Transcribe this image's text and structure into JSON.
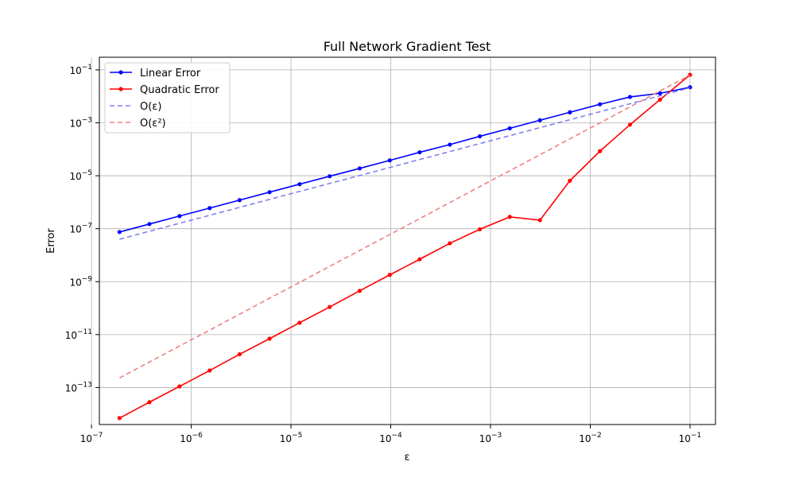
{
  "chart_data": {
    "type": "line",
    "title": "Full Network Gradient Test",
    "xlabel": "ε",
    "ylabel": "Error",
    "xscale": "log",
    "yscale": "log",
    "xlim": [
      1.2e-07,
      0.18
    ],
    "ylim": [
      4e-15,
      0.3
    ],
    "xticks": [
      {
        "value": 1e-07,
        "base": "10",
        "exp": "−7"
      },
      {
        "value": 1e-06,
        "base": "10",
        "exp": "−6"
      },
      {
        "value": 1e-05,
        "base": "10",
        "exp": "−5"
      },
      {
        "value": 0.0001,
        "base": "10",
        "exp": "−4"
      },
      {
        "value": 0.001,
        "base": "10",
        "exp": "−3"
      },
      {
        "value": 0.01,
        "base": "10",
        "exp": "−2"
      },
      {
        "value": 0.1,
        "base": "10",
        "exp": "−1"
      }
    ],
    "yticks": [
      {
        "value": 1e-13,
        "base": "10",
        "exp": "−13"
      },
      {
        "value": 1e-11,
        "base": "10",
        "exp": "−11"
      },
      {
        "value": 1e-09,
        "base": "10",
        "exp": "−9"
      },
      {
        "value": 1e-07,
        "base": "10",
        "exp": "−7"
      },
      {
        "value": 1e-05,
        "base": "10",
        "exp": "−5"
      },
      {
        "value": 0.001,
        "base": "10",
        "exp": "−3"
      },
      {
        "value": 0.1,
        "base": "10",
        "exp": "−1"
      }
    ],
    "grid": true,
    "legend_position": "top-left",
    "x": [
      1.91e-07,
      3.81e-07,
      7.63e-07,
      1.53e-06,
      3.05e-06,
      6.1e-06,
      1.22e-05,
      2.44e-05,
      4.88e-05,
      9.77e-05,
      0.000195,
      0.000391,
      0.000781,
      0.00156,
      0.00313,
      0.00625,
      0.0125,
      0.025,
      0.05,
      0.1
    ],
    "series": [
      {
        "name": "Linear Error",
        "color": "#0000ff",
        "style": "solid",
        "markers": true,
        "values": [
          7.5e-08,
          1.5e-07,
          3e-07,
          6e-07,
          1.2e-06,
          2.4e-06,
          4.8e-06,
          9.6e-06,
          1.9e-05,
          3.8e-05,
          7.7e-05,
          0.00015,
          0.00031,
          0.00062,
          0.00125,
          0.0025,
          0.005,
          0.0095,
          0.013,
          0.022
        ]
      },
      {
        "name": "Quadratic Error",
        "color": "#ff0000",
        "style": "solid",
        "markers": true,
        "values": [
          7e-15,
          2.8e-14,
          1.1e-13,
          4.4e-13,
          1.8e-12,
          7e-12,
          2.8e-11,
          1.1e-10,
          4.5e-10,
          1.8e-09,
          7e-09,
          2.8e-08,
          9.5e-08,
          2.8e-07,
          2.1e-07,
          6.5e-06,
          8.5e-05,
          0.00085,
          0.0075,
          0.065
        ]
      },
      {
        "name": "O(ε)",
        "color": "#8080f0",
        "style": "dashed",
        "markers": false,
        "values": [
          4e-08,
          8e-08,
          1.6e-07,
          3.2e-07,
          6.4e-07,
          1.28e-06,
          2.56e-06,
          5.12e-06,
          1.02e-05,
          2.05e-05,
          4.1e-05,
          8.2e-05,
          0.000164,
          0.000328,
          0.000655,
          0.00131,
          0.00262,
          0.00524,
          0.0105,
          0.021
        ]
      },
      {
        "name": "O(ε²)",
        "color": "#f08080",
        "style": "dashed",
        "markers": false,
        "values": [
          2.3e-13,
          9.2e-13,
          3.7e-12,
          1.47e-11,
          5.9e-11,
          2.36e-10,
          9.4e-10,
          3.77e-09,
          1.51e-08,
          6e-08,
          2.4e-07,
          9.7e-07,
          3.9e-06,
          1.55e-05,
          6.2e-05,
          0.00025,
          0.00099,
          0.004,
          0.016,
          0.063
        ]
      }
    ]
  }
}
